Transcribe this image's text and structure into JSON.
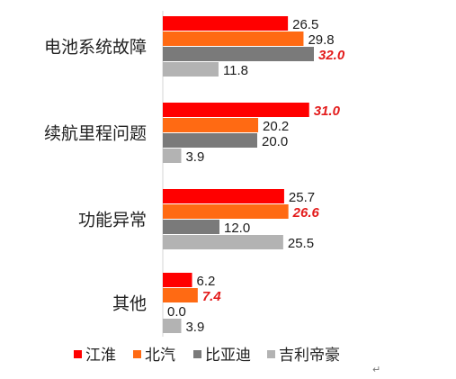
{
  "chart_data": {
    "type": "bar",
    "orientation": "horizontal",
    "categories": [
      "电池系统故障",
      "续航里程问题",
      "功能异常",
      "其他"
    ],
    "series": [
      {
        "name": "江淮",
        "color": "#ff0000",
        "values": [
          26.5,
          31.0,
          25.7,
          6.2
        ]
      },
      {
        "name": "北汽",
        "color": "#ff6a13",
        "values": [
          29.8,
          20.2,
          26.6,
          7.4
        ]
      },
      {
        "name": "比亚迪",
        "color": "#7a7a7a",
        "values": [
          32.0,
          20.0,
          12.0,
          0.0
        ]
      },
      {
        "name": "吉利帝豪",
        "color": "#b3b3b3",
        "values": [
          11.8,
          3.9,
          25.5,
          3.9
        ]
      }
    ],
    "highlight_max_color": "#e31b1b",
    "xlim": [
      0,
      32
    ],
    "grid": false,
    "legend_position": "bottom"
  },
  "edit_mark": "↵"
}
